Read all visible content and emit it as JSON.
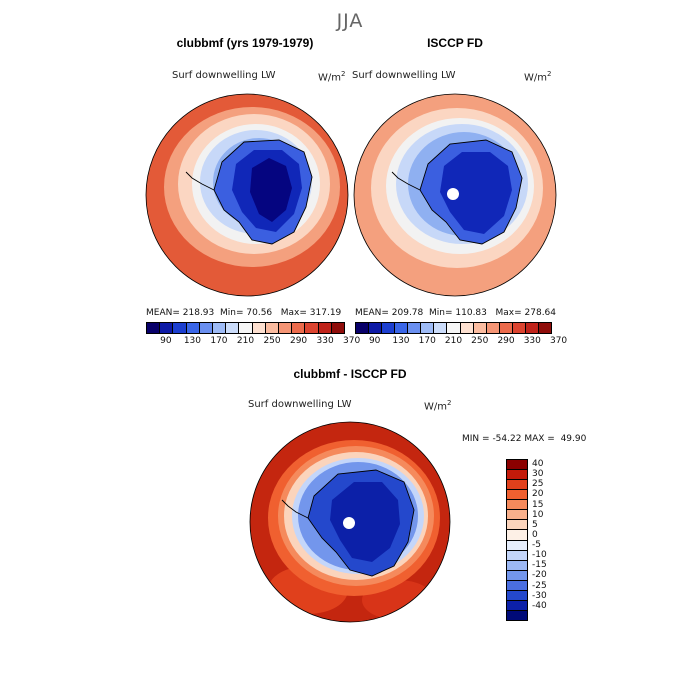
{
  "page": {
    "title": "JJA"
  },
  "panels": [
    {
      "title": "clubbmf (yrs 1979-1979)",
      "variable": "Surf downwelling LW",
      "units": "W/m",
      "units_exp": "2",
      "stats": {
        "mean_label": "MEAN=",
        "mean": "218.93",
        "min_label": "Min=",
        "min": "70.56",
        "max_label": "Max=",
        "max": "317.19"
      },
      "pole_hole": false
    },
    {
      "title": "ISCCP FD",
      "variable": "Surf downwelling LW",
      "units": "W/m",
      "units_exp": "2",
      "stats": {
        "mean_label": "MEAN=",
        "mean": "209.78",
        "min_label": "Min=",
        "min": "110.83",
        "max_label": "Max=",
        "max": "278.64"
      },
      "pole_hole": true
    }
  ],
  "abs_colorbar": {
    "labels": [
      "90",
      "130",
      "170",
      "210",
      "250",
      "290",
      "330",
      "370"
    ],
    "colors": [
      "#08006a",
      "#0d1aa6",
      "#1c3fd0",
      "#3a66e8",
      "#6b90f0",
      "#9ebbf6",
      "#cbdcfa",
      "#f6f6f6",
      "#fde0d0",
      "#fbbca0",
      "#f59575",
      "#ec6b4c",
      "#dc4430",
      "#c0231a",
      "#8f0d0a"
    ]
  },
  "diff_panel": {
    "title": "clubbmf - ISCCP FD",
    "variable": "Surf downwelling LW",
    "units": "W/m",
    "units_exp": "2",
    "stats": {
      "min_label": "MIN =",
      "min": "-54.22",
      "max_label": "MAX =",
      "max": "49.90"
    }
  },
  "diff_colorbar": {
    "labels": [
      "40",
      "30",
      "25",
      "20",
      "15",
      "10",
      "5",
      "0",
      "-5",
      "-10",
      "-15",
      "-20",
      "-25",
      "-30",
      "-40"
    ],
    "colors": [
      "#8b0000",
      "#c41a0a",
      "#e0401c",
      "#f06030",
      "#f58a5c",
      "#f8b08c",
      "#fbd4bc",
      "#fdf0e6",
      "#e6eefc",
      "#c4d6fa",
      "#9cb8f4",
      "#7396ec",
      "#4a6ee0",
      "#2448cc",
      "#0c20a8",
      "#000a78"
    ]
  },
  "map_palette": {
    "ocean_warm": "#e35a38",
    "ocean_mid": "#f4a07e",
    "ocean_light": "#fbd6c2",
    "transition": "#f2f2f2",
    "ice_light": "#c7d8f8",
    "ice_mid": "#8fb0f1",
    "land_mid": "#3b5fe0",
    "land_dark": "#1027b8",
    "land_darkest": "#050580"
  }
}
